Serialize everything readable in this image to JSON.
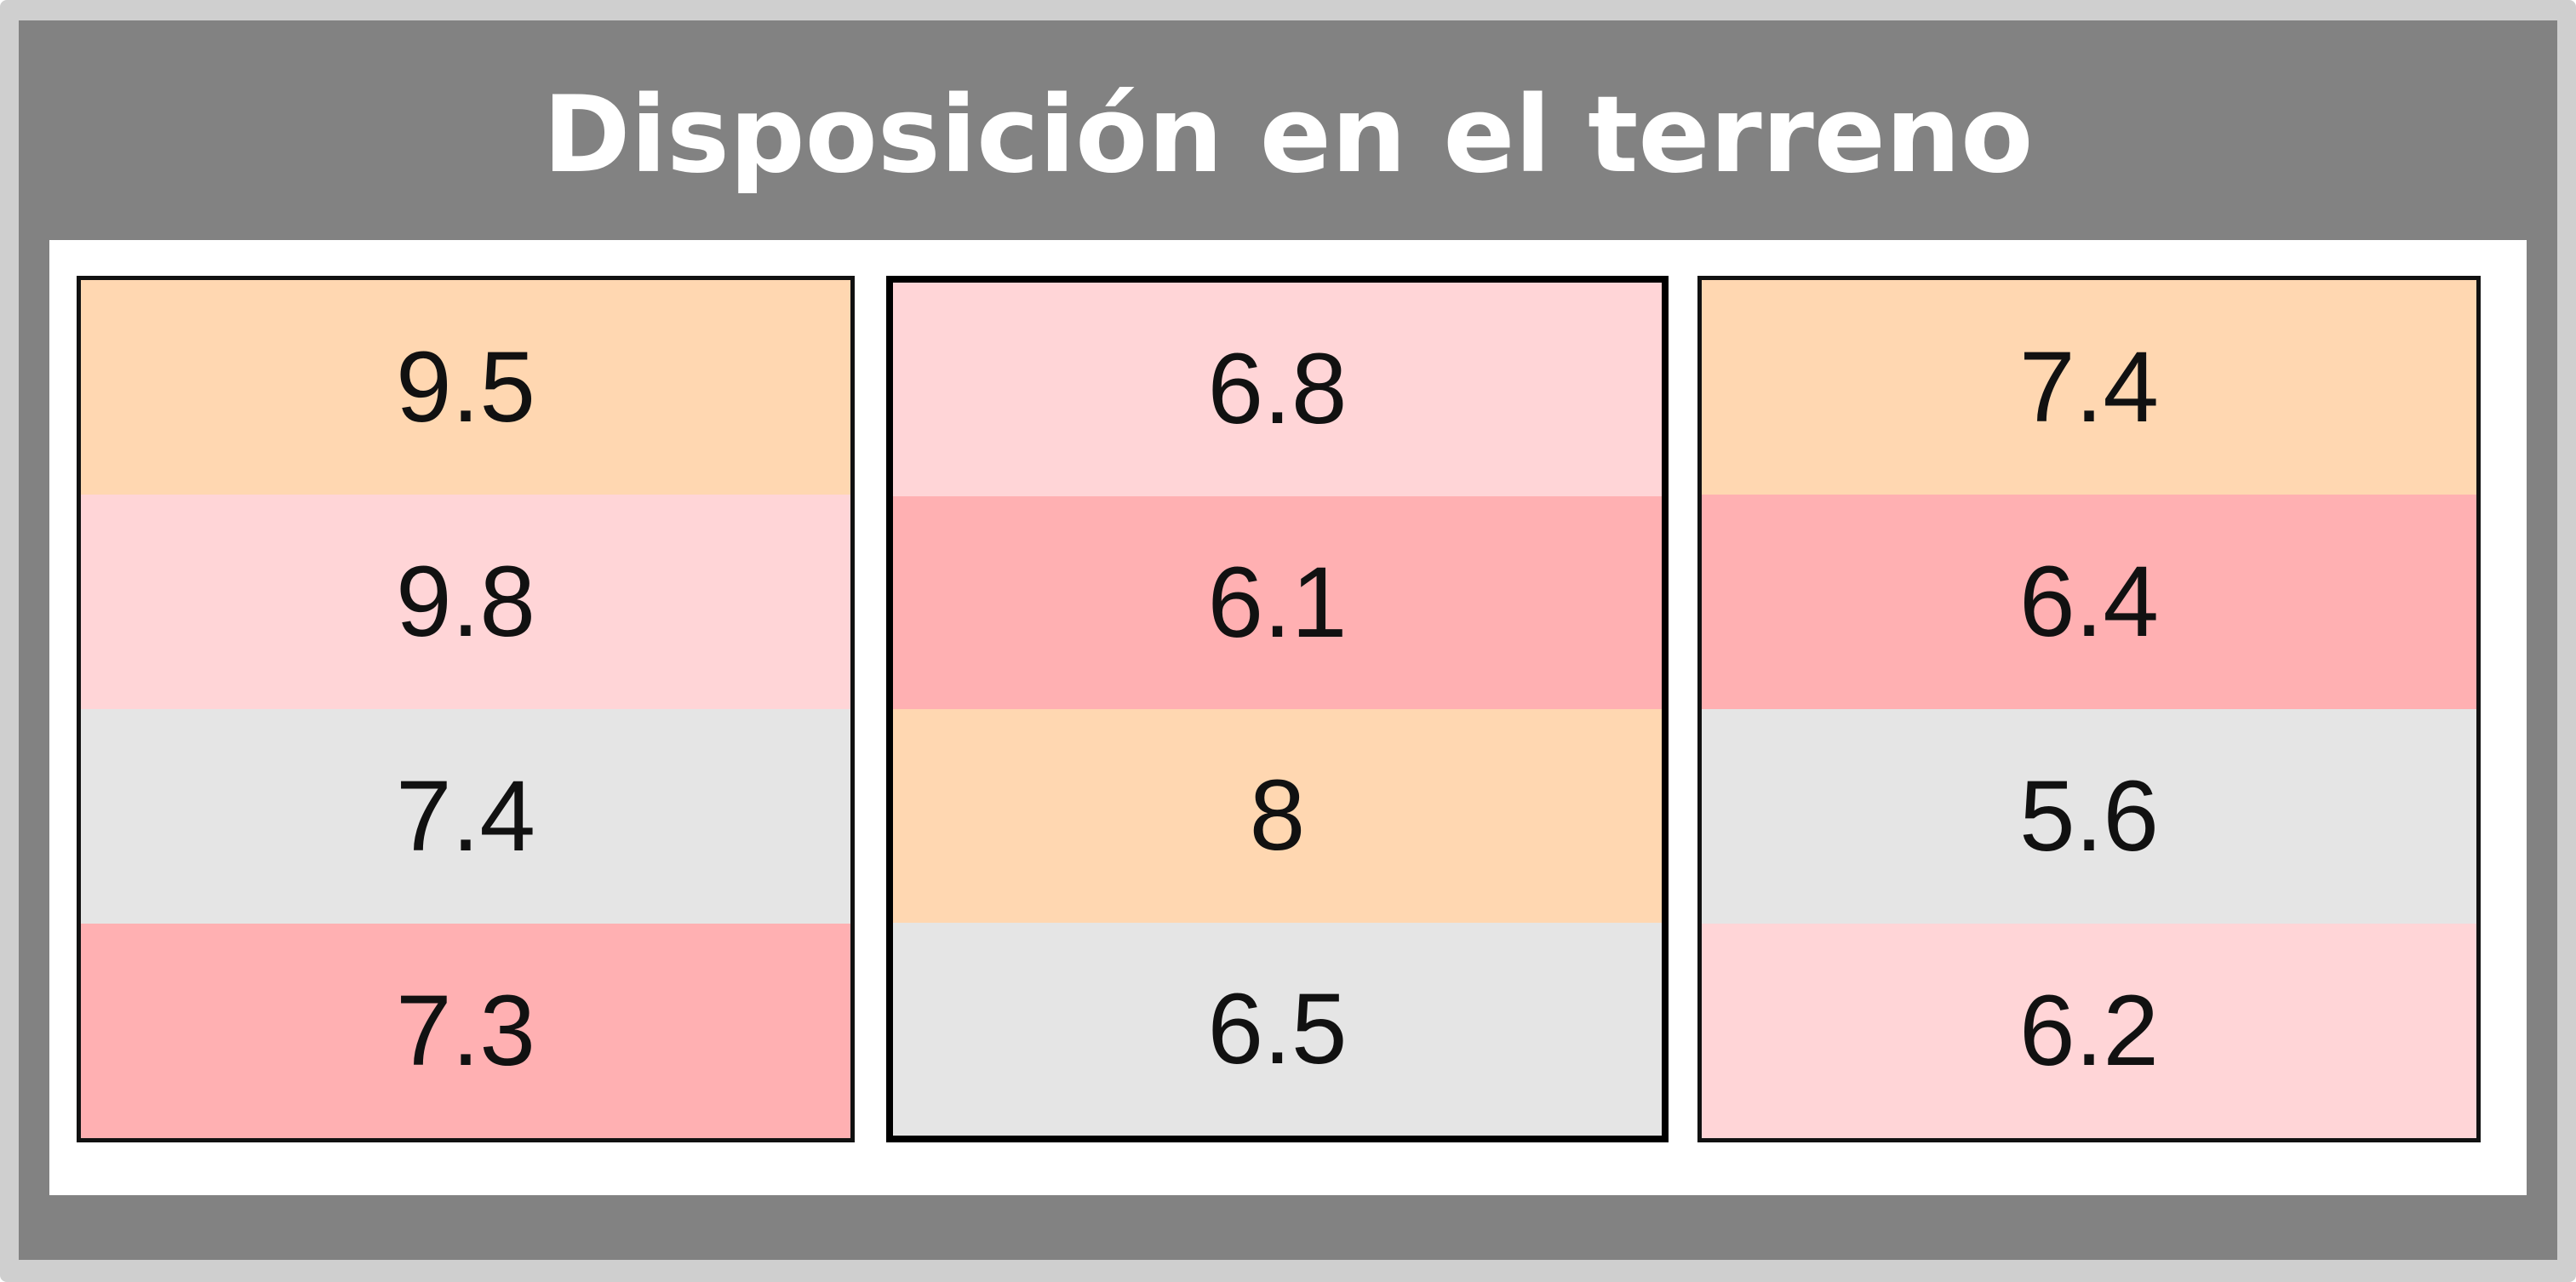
{
  "title": "Disposición en el terreno",
  "colors": {
    "frame": "#cfcfcf",
    "panel": "#828282",
    "peach": "#ffd7b1",
    "light_pink": "#ffd5d7",
    "pink": "#ffb0b2",
    "light_gray": "#e5e5e5"
  },
  "plots": [
    {
      "cells": [
        {
          "value": "9.5",
          "color": "#ffd7b1"
        },
        {
          "value": "9.8",
          "color": "#ffd5d7"
        },
        {
          "value": "7.4",
          "color": "#e5e5e5"
        },
        {
          "value": "7.3",
          "color": "#ffb0b2"
        }
      ]
    },
    {
      "cells": [
        {
          "value": "6.8",
          "color": "#ffd5d7"
        },
        {
          "value": "6.1",
          "color": "#ffb0b2"
        },
        {
          "value": "8",
          "color": "#ffd7b1"
        },
        {
          "value": "6.5",
          "color": "#e5e5e5"
        }
      ]
    },
    {
      "cells": [
        {
          "value": "7.4",
          "color": "#ffd7b1"
        },
        {
          "value": "6.4",
          "color": "#ffb0b2"
        },
        {
          "value": "5.6",
          "color": "#e5e5e5"
        },
        {
          "value": "6.2",
          "color": "#ffd5d7"
        }
      ]
    }
  ]
}
